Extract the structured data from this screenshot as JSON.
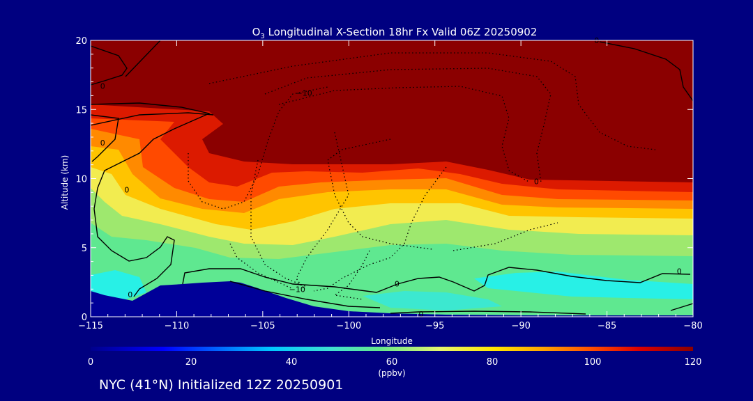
{
  "chart_data": {
    "type": "heatmap",
    "title_prefix": "O",
    "title_subscript": "3",
    "title_suffix": " Longitudinal X-Section 18hr  Fx Valid 06Z 20250902",
    "xlabel": "Longitude",
    "ylabel": "Altitude (km)",
    "xlim": [
      -115,
      -80
    ],
    "ylim": [
      0,
      20
    ],
    "xticks": [
      -115,
      -110,
      -105,
      -100,
      -95,
      -90,
      -85,
      -80
    ],
    "xtick_labels": [
      "−115",
      "−110",
      "−105",
      "−100",
      "−95",
      "−90",
      "−85",
      "−80"
    ],
    "yticks": [
      0,
      5,
      10,
      15,
      20
    ],
    "ytick_labels": [
      "0",
      "5",
      "10",
      "15",
      "20"
    ],
    "colorbar": {
      "min": 0,
      "max": 120,
      "ticks": [
        0,
        20,
        40,
        60,
        80,
        100,
        120
      ],
      "tick_labels": [
        "0",
        "20",
        "40",
        "60",
        "80",
        "100",
        "120"
      ],
      "unit": "(ppbv)"
    },
    "contour_labels": [
      {
        "text": "0",
        "lon": -114.3,
        "alt": 16.7
      },
      {
        "text": "0",
        "lon": -114.3,
        "alt": 12.6
      },
      {
        "text": "0",
        "lon": -112.9,
        "alt": 9.2
      },
      {
        "text": "0",
        "lon": -112.7,
        "alt": 1.6
      },
      {
        "text": "−10",
        "lon": -102.6,
        "alt": 16.2
      },
      {
        "text": "−10",
        "lon": -103.0,
        "alt": 2.0
      },
      {
        "text": "0",
        "lon": -97.2,
        "alt": 2.4
      },
      {
        "text": "0",
        "lon": -95.8,
        "alt": 0.2
      },
      {
        "text": "0",
        "lon": -89.1,
        "alt": 9.8
      },
      {
        "text": "0",
        "lon": -85.6,
        "alt": 20.0
      },
      {
        "text": "0",
        "lon": -80.8,
        "alt": 3.3
      }
    ]
  },
  "footer": "NYC (41°N) Initialized 12Z 20250901"
}
